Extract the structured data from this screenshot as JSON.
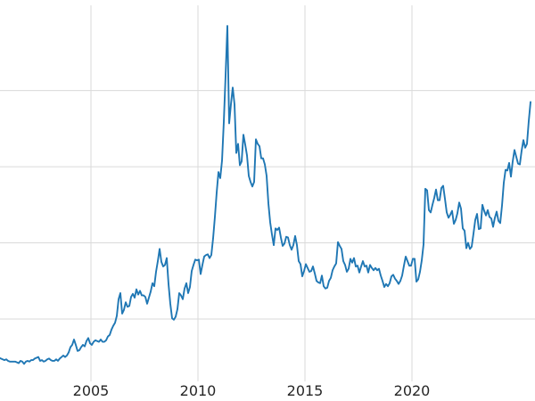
{
  "chart_data": {
    "type": "line",
    "title": "",
    "xlabel": "",
    "ylabel": "",
    "legend": "none",
    "grid": true,
    "line_color": "#1f77b4",
    "line_width": 1.9,
    "grid_color": "#dadada",
    "background": "#ffffff",
    "tick_label_color": "#262626",
    "xticks": [
      2005,
      2010,
      2015,
      2020
    ],
    "xtick_labels": [
      "2005",
      "2010",
      "2015",
      "2020"
    ],
    "ygrid_values": [
      10,
      20,
      30,
      40
    ],
    "xlim": [
      2000.75,
      2025.75
    ],
    "ylim": [
      1.8,
      51.2
    ],
    "x_start_year": 2000,
    "x_start_month": 9,
    "x_step": "monthly",
    "monthly_values": [
      4.9,
      4.8,
      4.7,
      4.6,
      4.7,
      4.5,
      4.4,
      4.4,
      4.4,
      4.4,
      4.3,
      4.2,
      4.5,
      4.4,
      4.1,
      4.4,
      4.5,
      4.4,
      4.6,
      4.6,
      4.8,
      4.9,
      5.0,
      4.5,
      4.6,
      4.4,
      4.5,
      4.7,
      4.8,
      4.6,
      4.5,
      4.5,
      4.7,
      4.5,
      4.8,
      5.0,
      5.2,
      5.0,
      5.2,
      5.6,
      6.3,
      6.6,
      7.3,
      6.6,
      5.8,
      5.9,
      6.3,
      6.6,
      6.4,
      7.1,
      7.5,
      6.8,
      6.6,
      7.0,
      7.2,
      7.1,
      7.0,
      7.3,
      7.0,
      7.0,
      7.2,
      7.7,
      7.9,
      8.6,
      9.1,
      9.5,
      10.4,
      12.6,
      13.4,
      10.7,
      11.2,
      12.2,
      11.6,
      11.7,
      12.9,
      13.3,
      12.8,
      13.9,
      13.2,
      13.7,
      13.1,
      13.1,
      12.9,
      12.0,
      12.8,
      13.6,
      14.7,
      14.3,
      16.2,
      17.6,
      19.2,
      17.5,
      16.9,
      17.1,
      18.0,
      14.6,
      12.0,
      10.1,
      9.9,
      10.3,
      11.3,
      13.4,
      13.1,
      12.6,
      14.0,
      14.7,
      13.4,
      14.2,
      16.3,
      17.1,
      17.8,
      17.7,
      17.8,
      15.9,
      17.1,
      18.2,
      18.4,
      18.5,
      18.0,
      18.4,
      20.6,
      23.4,
      26.6,
      29.3,
      28.5,
      30.8,
      35.9,
      42.0,
      48.5,
      35.7,
      38.2,
      40.4,
      38.2,
      31.8,
      33.0,
      30.2,
      30.7,
      34.2,
      32.9,
      31.5,
      28.8,
      28.0,
      27.4,
      28.0,
      33.6,
      33.0,
      32.7,
      31.1,
      31.1,
      30.3,
      28.8,
      25.2,
      22.7,
      21.1,
      19.7,
      21.9,
      21.7,
      22.0,
      20.7,
      19.6,
      19.9,
      20.8,
      20.7,
      19.7,
      19.1,
      19.7,
      20.9,
      19.7,
      17.6,
      17.2,
      15.6,
      16.3,
      17.2,
      16.7,
      16.2,
      16.3,
      16.9,
      16.0,
      15.0,
      14.8,
      14.7,
      15.7,
      14.3,
      14.0,
      14.1,
      15.0,
      15.4,
      16.4,
      16.9,
      17.3,
      20.1,
      19.6,
      19.2,
      17.6,
      17.1,
      16.2,
      16.6,
      17.9,
      17.4,
      18.0,
      16.9,
      17.0,
      16.1,
      16.9,
      17.6,
      16.9,
      17.0,
      16.1,
      17.1,
      16.7,
      16.4,
      16.7,
      16.4,
      16.6,
      15.7,
      15.0,
      14.2,
      14.6,
      14.3,
      14.7,
      15.6,
      15.8,
      15.3,
      15.0,
      14.6,
      15.0,
      15.7,
      17.0,
      18.2,
      17.6,
      17.0,
      17.0,
      17.9,
      17.9,
      14.9,
      15.2,
      16.2,
      17.7,
      19.8,
      27.1,
      26.9,
      24.3,
      24.0,
      25.0,
      25.9,
      27.0,
      25.6,
      25.6,
      27.2,
      27.5,
      25.8,
      24.0,
      23.3,
      23.7,
      24.2,
      22.5,
      23.0,
      23.9,
      25.3,
      24.5,
      21.9,
      21.6,
      19.3,
      20.0,
      19.2,
      19.5,
      21.2,
      23.0,
      23.8,
      21.8,
      21.9,
      25.0,
      24.2,
      23.6,
      24.3,
      23.4,
      23.2,
      22.1,
      23.3,
      24.1,
      22.9,
      22.6,
      24.9,
      27.9,
      29.6,
      29.5,
      30.5,
      28.7,
      30.7,
      32.2,
      31.3,
      30.4,
      30.3,
      32.1,
      33.5,
      32.5,
      33.0,
      36.0,
      38.5
    ]
  }
}
